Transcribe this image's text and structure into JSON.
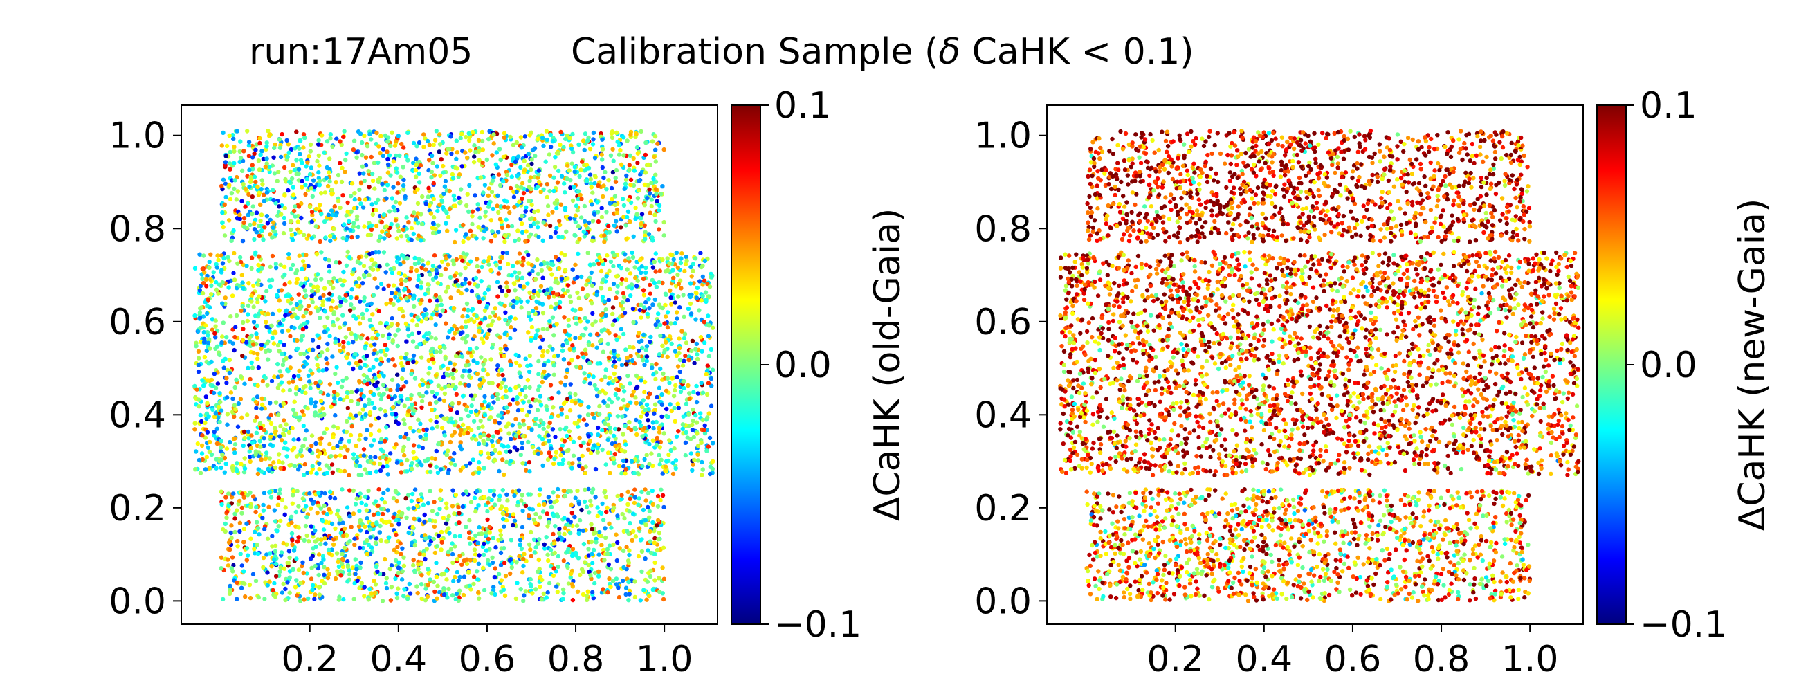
{
  "header": {
    "run_label": "run:17Am05",
    "title_prefix": "Calibration Sample (",
    "title_symbol": "δ",
    "title_suffix": " CaHK < 0.1)"
  },
  "chart_data": [
    {
      "type": "scatter",
      "colorbar_label": "ΔCaHK (old-Gaia)",
      "colorbar_range": [
        -0.1,
        0.1
      ],
      "colorbar_ticks": [
        "0.1",
        "0.0",
        "−0.1"
      ],
      "colormap": "jet",
      "xlim": [
        -0.09,
        1.12
      ],
      "ylim": [
        -0.05,
        1.065
      ],
      "xticks": [
        "0.2",
        "0.4",
        "0.6",
        "0.8",
        "1.0"
      ],
      "xtick_values": [
        0.2,
        0.4,
        0.6,
        0.8,
        1.0
      ],
      "yticks": [
        "1.0",
        "0.8",
        "0.6",
        "0.4",
        "0.2",
        "0.0"
      ],
      "ytick_values": [
        1.0,
        0.8,
        0.6,
        0.4,
        0.2,
        0.0
      ],
      "point_regions": [
        {
          "x": [
            0.0,
            1.0
          ],
          "y": [
            0.77,
            1.01
          ]
        },
        {
          "x": [
            -0.06,
            1.11
          ],
          "y": [
            0.27,
            0.75
          ]
        },
        {
          "x": [
            0.0,
            1.0
          ],
          "y": [
            0.0,
            0.24
          ]
        }
      ],
      "value_mean": 0.0,
      "value_spread": 0.055
    },
    {
      "type": "scatter",
      "colorbar_label": "ΔCaHK (new-Gaia)",
      "colorbar_range": [
        -0.1,
        0.1
      ],
      "colorbar_ticks": [
        "0.1",
        "0.0",
        "−0.1"
      ],
      "colormap": "jet",
      "xlim": [
        -0.09,
        1.12
      ],
      "ylim": [
        -0.05,
        1.065
      ],
      "xticks": [
        "0.2",
        "0.4",
        "0.6",
        "0.8",
        "1.0"
      ],
      "xtick_values": [
        0.2,
        0.4,
        0.6,
        0.8,
        1.0
      ],
      "yticks": [
        "1.0",
        "0.8",
        "0.6",
        "0.4",
        "0.2",
        "0.0"
      ],
      "ytick_values": [
        1.0,
        0.8,
        0.6,
        0.4,
        0.2,
        0.0
      ],
      "point_regions": [
        {
          "x": [
            0.0,
            1.0
          ],
          "y": [
            0.77,
            1.01
          ],
          "value_mean": 0.08
        },
        {
          "x": [
            -0.06,
            1.11
          ],
          "y": [
            0.27,
            0.75
          ],
          "value_mean": 0.065
        },
        {
          "x": [
            0.0,
            1.0
          ],
          "y": [
            0.0,
            0.24
          ],
          "value_mean": 0.045
        }
      ],
      "value_spread": 0.055
    }
  ]
}
